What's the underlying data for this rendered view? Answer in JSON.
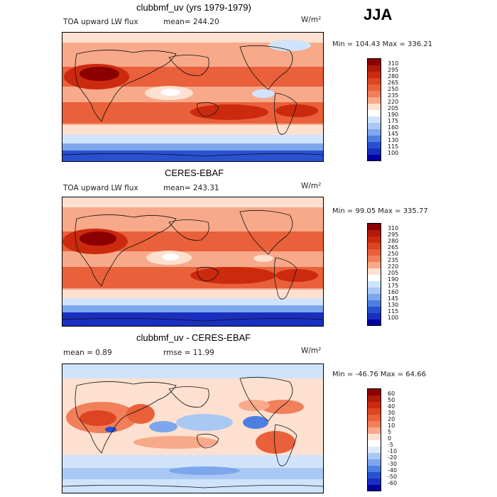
{
  "season": "JJA",
  "chart_data": [
    {
      "type": "heatmap",
      "title": "clubbmf_uv (yrs 1979-1979)",
      "field_label": "TOA upward LW flux",
      "mean_text": "mean=  244.20",
      "units": "W/m²",
      "min_max_text": "Min = 104.43  Max = 336.21",
      "colorbar_levels": [
        "310",
        "295",
        "280",
        "265",
        "250",
        "235",
        "220",
        "205",
        "190",
        "175",
        "160",
        "145",
        "130",
        "115",
        "100"
      ],
      "colorbar_colors": [
        "#8b0000",
        "#b01a08",
        "#cc2a0e",
        "#dd4422",
        "#e9603a",
        "#f07f5a",
        "#f7a98a",
        "#fde0cf",
        "#ffffff",
        "#cfe4fb",
        "#a9c8f4",
        "#7ea6ec",
        "#4d7fe2",
        "#2850d0",
        "#1a2fc0",
        "#0000a0"
      ]
    },
    {
      "type": "heatmap",
      "title": "CERES-EBAF",
      "field_label": "TOA upward LW flux",
      "mean_text": "mean=  243.31",
      "units": "W/m²",
      "min_max_text": "Min =  99.05  Max = 335.77",
      "colorbar_levels": [
        "310",
        "295",
        "280",
        "265",
        "250",
        "235",
        "220",
        "205",
        "190",
        "175",
        "160",
        "145",
        "130",
        "115",
        "100"
      ],
      "colorbar_colors": [
        "#8b0000",
        "#b01a08",
        "#cc2a0e",
        "#dd4422",
        "#e9603a",
        "#f07f5a",
        "#f7a98a",
        "#fde0cf",
        "#ffffff",
        "#cfe4fb",
        "#a9c8f4",
        "#7ea6ec",
        "#4d7fe2",
        "#2850d0",
        "#1a2fc0",
        "#0000a0"
      ]
    },
    {
      "type": "heatmap",
      "title": "clubbmf_uv - CERES-EBAF",
      "mean_text": "mean =    0.89",
      "rmse_text": "rmse =   11.99",
      "units": "W/m²",
      "min_max_text": "Min = -46.76  Max =  64.66",
      "colorbar_levels": [
        "60",
        "50",
        "40",
        "30",
        "20",
        "10",
        "5",
        "0",
        "-5",
        "-10",
        "-20",
        "-30",
        "-40",
        "-50",
        "-60"
      ],
      "colorbar_colors": [
        "#8b0000",
        "#b01a08",
        "#cc2a0e",
        "#dd4422",
        "#e9603a",
        "#f07f5a",
        "#f7a98a",
        "#fde0cf",
        "#ffffff",
        "#dfe9fb",
        "#a9c8f4",
        "#7ea6ec",
        "#4d7fe2",
        "#2850d0",
        "#1a2fc0",
        "#0000a0"
      ]
    }
  ]
}
